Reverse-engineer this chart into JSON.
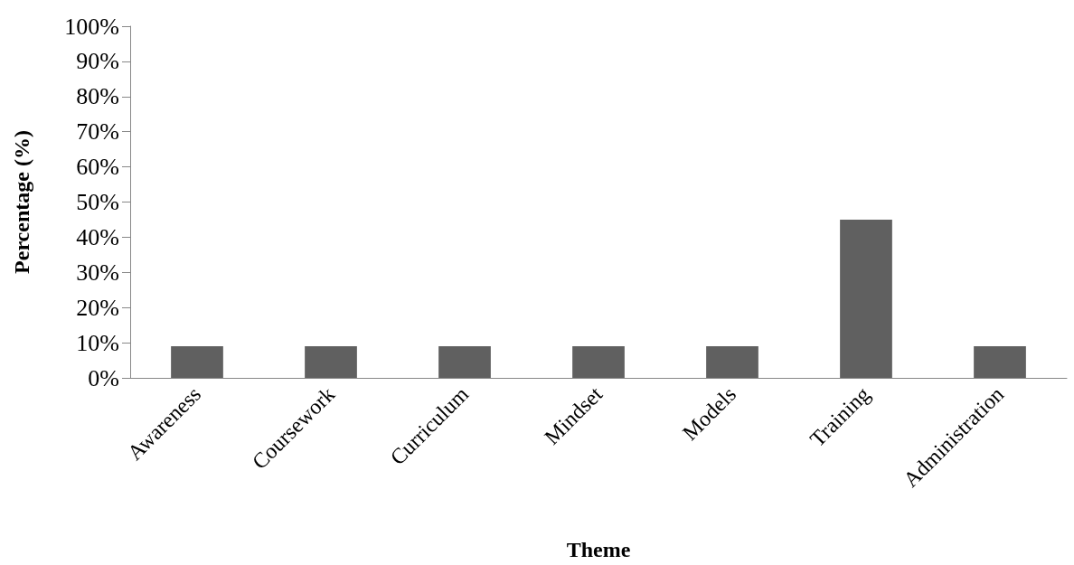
{
  "chart_data": {
    "type": "bar",
    "xlabel": "Theme",
    "ylabel": "Percentage (%)",
    "categories": [
      "Awareness",
      "Coursework",
      "Curriculum",
      "Mindset",
      "Models",
      "Training",
      "Administration"
    ],
    "values": [
      9,
      9,
      9,
      9,
      9,
      45,
      9
    ],
    "color": "#606060",
    "ylim": [
      0,
      100
    ],
    "yticks": [
      {
        "value": 0,
        "label": "0%"
      },
      {
        "value": 10,
        "label": "10%"
      },
      {
        "value": 20,
        "label": "20%"
      },
      {
        "value": 30,
        "label": "30%"
      },
      {
        "value": 40,
        "label": "40%"
      },
      {
        "value": 50,
        "label": "50%"
      },
      {
        "value": 60,
        "label": "60%"
      },
      {
        "value": 70,
        "label": "70%"
      },
      {
        "value": 80,
        "label": "80%"
      },
      {
        "value": 90,
        "label": "90%"
      },
      {
        "value": 100,
        "label": "100%"
      }
    ],
    "grid": false
  }
}
